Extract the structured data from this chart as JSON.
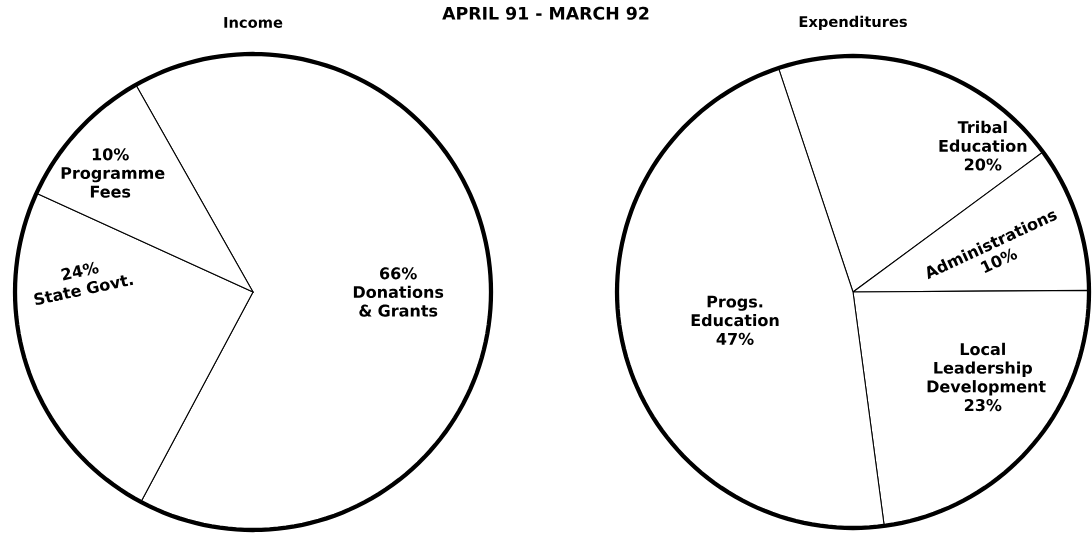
{
  "chart_data": [
    {
      "type": "pie",
      "title": "Income",
      "annotations": [
        "APRIL 91 - MARCH 92"
      ],
      "categories": [
        "Donations & Grants",
        "State Govt.",
        "Programme Fees"
      ],
      "values": [
        66,
        24,
        10
      ],
      "value_labels": [
        "66%",
        "24%",
        "10%"
      ],
      "colors": [
        "#ffffff",
        "#ffffff",
        "#ffffff"
      ]
    },
    {
      "type": "pie",
      "title": "Expenditures",
      "categories": [
        "Tribal Education",
        "Administrations",
        "Local Leadership Development",
        "Progs. Education"
      ],
      "values": [
        20,
        10,
        23,
        47
      ],
      "value_labels": [
        "20%",
        "10%",
        "23%",
        "47%"
      ],
      "colors": [
        "#ffffff",
        "#ffffff",
        "#ffffff",
        "#ffffff"
      ]
    }
  ]
}
